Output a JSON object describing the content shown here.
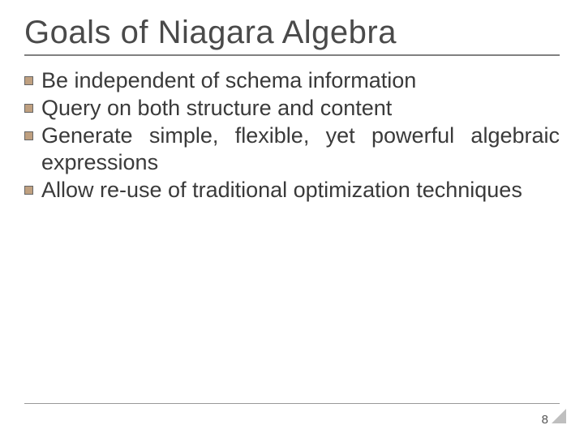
{
  "slide": {
    "title": "Goals of Niagara Algebra",
    "bullets": [
      "Be independent of schema information",
      "Query on both structure and content",
      "Generate simple, flexible, yet powerful algebraic expressions",
      "Allow re-use of traditional optimization techniques"
    ],
    "page_number": "8"
  },
  "style": {
    "background_color": "#ffffff",
    "title_color": "#4a4a4a",
    "title_fontsize": 40,
    "body_color": "#3a3a3a",
    "body_fontsize": 27,
    "bullet_fill": "#bfa080",
    "bullet_border": "#666666",
    "rule_color": "#808080",
    "footer_rule_color": "#999999",
    "corner_color": "#8a8a8a",
    "page_number_color": "#555555",
    "page_number_fontsize": 15,
    "font_family": "Verdana"
  }
}
